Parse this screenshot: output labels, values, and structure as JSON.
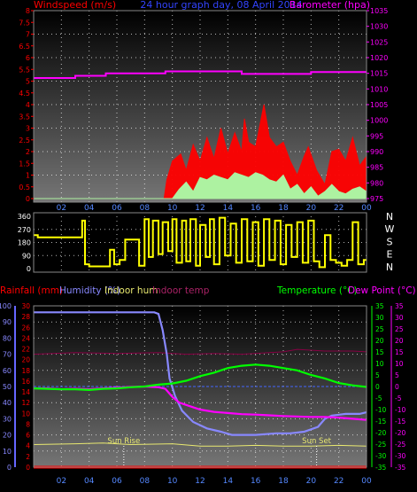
{
  "chart_data": [
    {
      "type": "line",
      "title": "24 hour graph day, 08 April 2014",
      "left_axis_title": "Windspeed (m/s)",
      "right_axis_title": "Barometer (hpa)",
      "ylim_left": [
        0,
        8
      ],
      "ylim_right": [
        975,
        1035
      ],
      "left_ticks": [
        "0",
        "0.5",
        "1",
        "1.5",
        "2",
        "2.5",
        "3",
        "3.5",
        "4",
        "4.5",
        "5",
        "5.5",
        "6",
        "6.5",
        "7",
        "7.5",
        "8"
      ],
      "right_ticks": [
        "975",
        "980",
        "985",
        "990",
        "995",
        "1000",
        "1005",
        "1010",
        "1015",
        "1020",
        "1025",
        "1030",
        "1035"
      ],
      "x_ticks": [
        "02",
        "04",
        "06",
        "08",
        "10",
        "12",
        "14",
        "16",
        "18",
        "20",
        "22",
        "00"
      ],
      "grid": true,
      "series": [
        {
          "name": "Barometer",
          "color": "#ff00ff",
          "x": [
            0,
            3,
            3,
            5.2,
            5.2,
            9.5,
            9.5,
            15,
            15,
            20,
            20,
            24
          ],
          "values": [
            1013.5,
            1013.5,
            1014.2,
            1014.2,
            1015,
            1015,
            1015.6,
            1015.6,
            1014.8,
            1014.8,
            1015.4,
            1015.4
          ]
        },
        {
          "name": "Wind gust",
          "color": "#ff0000",
          "x": [
            0,
            9.4,
            9.6,
            10,
            10.6,
            11,
            11.5,
            12,
            12.5,
            13,
            13.5,
            14,
            14.5,
            15,
            15.2,
            15.5,
            16,
            16.3,
            16.6,
            17,
            17.5,
            18,
            18.5,
            19,
            19.5,
            19.8,
            20.4,
            21,
            21.5,
            22,
            22.5,
            23,
            23.5,
            24
          ],
          "values": [
            0,
            0,
            0.8,
            1.6,
            1.9,
            1.2,
            2.3,
            1.6,
            2.6,
            1.7,
            3.0,
            1.9,
            2.8,
            2.0,
            3.4,
            2.4,
            2.2,
            3.1,
            4.0,
            2.6,
            2.2,
            2.4,
            1.6,
            1.0,
            1.8,
            2.2,
            1.2,
            0.6,
            2.0,
            2.1,
            1.6,
            2.6,
            1.4,
            1.8
          ]
        },
        {
          "name": "Wind speed",
          "color": "#aaffaa",
          "x": [
            0,
            10,
            10.5,
            11,
            11.5,
            12,
            12.5,
            13,
            13.5,
            14,
            14.5,
            15,
            15.5,
            16,
            16.5,
            17,
            17.5,
            18,
            18.5,
            19,
            19.5,
            20,
            20.5,
            21,
            21.5,
            22,
            22.5,
            23,
            23.5,
            24
          ],
          "values": [
            0,
            0,
            0.4,
            0.7,
            0.3,
            0.9,
            0.8,
            1.0,
            0.9,
            0.8,
            1.1,
            1.0,
            0.9,
            1.1,
            1.0,
            0.8,
            0.7,
            1.0,
            0.4,
            0.6,
            0.2,
            0.5,
            0.1,
            0.3,
            0.6,
            0.3,
            0.2,
            0.4,
            0.5,
            0.3
          ]
        }
      ]
    },
    {
      "type": "line",
      "title": "",
      "ylim_left": [
        0,
        360
      ],
      "left_ticks": [
        "0",
        "90",
        "180",
        "270",
        "360"
      ],
      "compass": [
        "N",
        "W",
        "S",
        "E",
        "N"
      ],
      "grid": true,
      "series": [
        {
          "name": "Wind direction",
          "color": "#ffff00",
          "x": [
            0,
            0.3,
            0.3,
            3.5,
            3.5,
            3.7,
            3.7,
            4.0,
            4.0,
            5.5,
            5.5,
            5.8,
            5.8,
            6.2,
            6.2,
            6.6,
            6.6,
            7.6,
            7.6,
            8.0,
            8.0,
            8.3,
            8.3,
            8.6,
            8.6,
            9.0,
            9.0,
            9.3,
            9.3,
            9.7,
            9.7,
            10.0,
            10.0,
            10.3,
            10.3,
            10.7,
            10.7,
            11.0,
            11.0,
            11.3,
            11.3,
            11.7,
            11.7,
            12.0,
            12.0,
            12.4,
            12.4,
            12.7,
            12.7,
            13.0,
            13.0,
            13.4,
            13.4,
            13.8,
            13.8,
            14.2,
            14.2,
            14.6,
            14.6,
            15.0,
            15.0,
            15.4,
            15.4,
            15.8,
            15.8,
            16.2,
            16.2,
            16.6,
            16.6,
            17.0,
            17.0,
            17.4,
            17.4,
            17.8,
            17.8,
            18.2,
            18.2,
            18.6,
            18.6,
            19.0,
            19.0,
            19.4,
            19.4,
            19.8,
            19.8,
            20.2,
            20.2,
            20.6,
            20.6,
            21.0,
            21.0,
            21.4,
            21.4,
            21.8,
            21.8,
            22.2,
            22.2,
            22.6,
            22.6,
            23.0,
            23.0,
            23.4,
            23.4,
            23.8,
            23.8,
            24.0
          ],
          "values": [
            230,
            230,
            215,
            215,
            330,
            330,
            30,
            30,
            15,
            15,
            130,
            130,
            30,
            30,
            60,
            60,
            200,
            200,
            20,
            20,
            340,
            340,
            80,
            80,
            330,
            330,
            100,
            100,
            320,
            320,
            120,
            120,
            340,
            340,
            40,
            40,
            330,
            330,
            50,
            50,
            340,
            340,
            20,
            20,
            300,
            300,
            80,
            80,
            340,
            340,
            30,
            30,
            350,
            350,
            90,
            90,
            310,
            310,
            40,
            40,
            340,
            340,
            50,
            50,
            320,
            320,
            20,
            20,
            340,
            340,
            60,
            60,
            330,
            330,
            30,
            30,
            300,
            300,
            80,
            80,
            320,
            320,
            40,
            40,
            330,
            330,
            50,
            50,
            10,
            10,
            230,
            230,
            60,
            60,
            40,
            40,
            20,
            20,
            60,
            60,
            320,
            320,
            30,
            30,
            60,
            60
          ]
        }
      ]
    },
    {
      "type": "line",
      "title": "",
      "left_axis_title_1": "Rainfall (mm)",
      "left_axis_title_2": "Humidity (%)",
      "left_axis_title_3": "Indoor hum",
      "left_axis_title_4": "Indoor temp",
      "right_axis_title_1": "Temperature (°C)",
      "right_axis_title_2": "Dew Point (°C)",
      "humidity_ylim": [
        0,
        100
      ],
      "humidity_ticks": [
        "0",
        "10",
        "20",
        "30",
        "40",
        "50",
        "60",
        "70",
        "80",
        "90",
        "100"
      ],
      "rain_ylim": [
        0,
        30
      ],
      "rain_ticks": [
        "0",
        "2",
        "4",
        "6",
        "8",
        "10",
        "12",
        "14",
        "16",
        "18",
        "20",
        "22",
        "24",
        "26",
        "28",
        "30"
      ],
      "temp_ylim": [
        -35,
        35
      ],
      "temp_ticks": [
        "-35",
        "-30",
        "-25",
        "-20",
        "-15",
        "-10",
        "-5",
        "0",
        "5",
        "10",
        "15",
        "20",
        "25",
        "30",
        "35"
      ],
      "x_ticks": [
        "02",
        "04",
        "06",
        "08",
        "10",
        "12",
        "14",
        "16",
        "18",
        "20",
        "22",
        "00"
      ],
      "annotations": [
        {
          "text": "Sun Rise",
          "x": 6.5
        },
        {
          "text": "Sun Set",
          "x": 20.4
        }
      ],
      "grid": true,
      "series": [
        {
          "name": "Humidity",
          "color": "#8888ff",
          "axis": "humidity",
          "x": [
            0,
            8.7,
            9.0,
            9.3,
            9.6,
            9.8,
            10.2,
            10.7,
            11.5,
            12.5,
            13.5,
            14.3,
            15.0,
            16.0,
            17.5,
            18.5,
            19.5,
            20.5,
            21.0,
            21.5,
            22.5,
            23.5,
            24
          ],
          "values": [
            96,
            96,
            95,
            85,
            70,
            55,
            44,
            35,
            28,
            24,
            22,
            20,
            20,
            20,
            21,
            21,
            22,
            25,
            30,
            32,
            33,
            33,
            34
          ]
        },
        {
          "name": "Temperature",
          "color": "#00ff00",
          "axis": "temp",
          "x": [
            0,
            1,
            2,
            3,
            4,
            5,
            6,
            7,
            8,
            9,
            10,
            11,
            12,
            13,
            14,
            15,
            16,
            17,
            18,
            19,
            20,
            21,
            22,
            23,
            24
          ],
          "values": [
            -0.8,
            -1,
            -1.2,
            -1.2,
            -1.5,
            -1,
            -0.8,
            -0.3,
            0,
            0.8,
            1.3,
            2.5,
            4.5,
            6,
            8,
            9,
            9.5,
            9,
            8,
            7,
            5,
            3.5,
            1.5,
            0.5,
            -0.2
          ]
        },
        {
          "name": "Dew Point",
          "color": "#ff00ff",
          "axis": "temp",
          "x": [
            0,
            1,
            2,
            3,
            4,
            5,
            6,
            7,
            8,
            9,
            9.5,
            10,
            10.5,
            11,
            12,
            13,
            14,
            15,
            16,
            17,
            18,
            19,
            20,
            21,
            22,
            23,
            24
          ],
          "values": [
            -0.8,
            -0.8,
            -1.2,
            -1.0,
            -1.2,
            -0.8,
            -0.5,
            -0.2,
            0,
            -0.3,
            -1,
            -4.5,
            -7,
            -8,
            -10,
            -11,
            -11.5,
            -12,
            -12.2,
            -12.5,
            -12.8,
            -13,
            -13.2,
            -13.2,
            -13.5,
            -14,
            -14.5
          ]
        },
        {
          "name": "Indoor hum",
          "color": "#e8e870",
          "axis": "humidity",
          "x": [
            0,
            3,
            5,
            7,
            10,
            12,
            14,
            16,
            18,
            20,
            22,
            24
          ],
          "values": [
            14,
            14.5,
            15,
            14,
            14.5,
            13,
            13,
            13.5,
            13,
            13,
            13.5,
            13
          ]
        },
        {
          "name": "Indoor temp",
          "color": "#880044",
          "axis": "humidity",
          "x": [
            0,
            3,
            6,
            9,
            11,
            13,
            15,
            17,
            18,
            19,
            21,
            23,
            24
          ],
          "values": [
            70,
            71,
            70.5,
            71,
            70,
            70.5,
            70,
            71,
            71.5,
            73,
            72,
            72,
            71.5
          ]
        },
        {
          "name": "Rainfall",
          "color": "#ff0000",
          "axis": "rain",
          "x": [
            0,
            24
          ],
          "values": [
            0,
            0
          ]
        }
      ]
    }
  ]
}
